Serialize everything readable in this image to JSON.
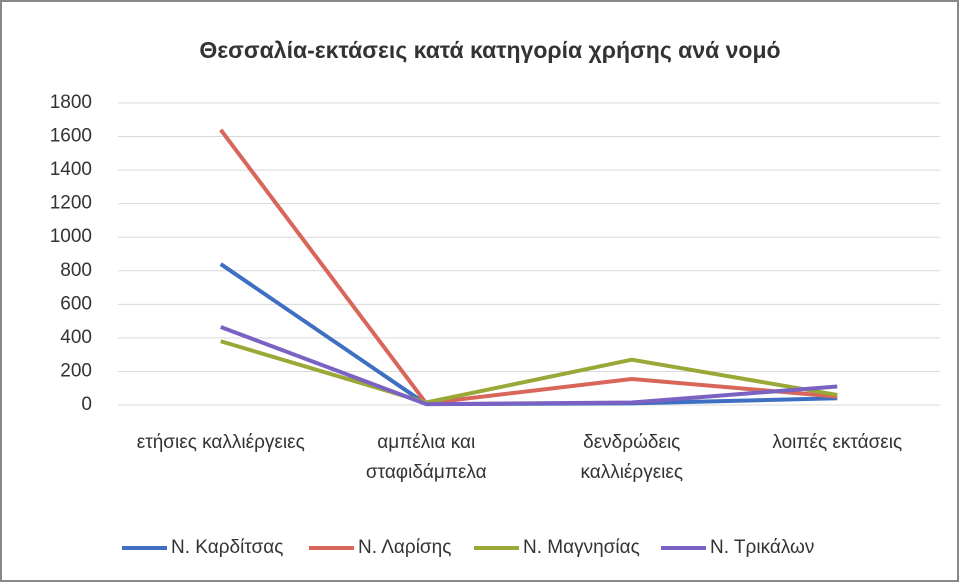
{
  "chart_data": {
    "type": "line",
    "title": "Θεσσαλία-εκτάσεις κατά κατηγορία χρήσης ανά νομό",
    "categories": [
      "ετήσιες καλλιέργειες",
      "αμπέλια και σταφιδάμπελα",
      "δενδρώδεις καλλιέργειες",
      "λοιπές εκτάσεις"
    ],
    "series": [
      {
        "name": "Ν. Καρδίτσας",
        "color": "#3e6fc2",
        "values": [
          840,
          5,
          10,
          40
        ]
      },
      {
        "name": "Ν. Λαρίσης",
        "color": "#d8665a",
        "values": [
          1640,
          10,
          155,
          50
        ]
      },
      {
        "name": "Ν. Μαγνησίας",
        "color": "#9aa838",
        "values": [
          380,
          15,
          270,
          60
        ]
      },
      {
        "name": "Ν. Τρικάλων",
        "color": "#7b62c2",
        "values": [
          465,
          5,
          15,
          110
        ]
      }
    ],
    "ylim": [
      0,
      1800
    ],
    "yticks": [
      0,
      200,
      400,
      600,
      800,
      1000,
      1200,
      1400,
      1600,
      1800
    ],
    "grid": true,
    "legend": "bottom"
  }
}
